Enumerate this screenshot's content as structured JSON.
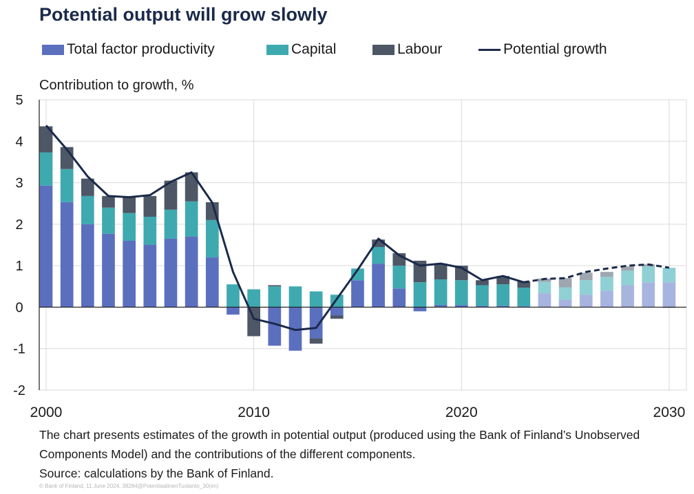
{
  "title": "Potential output will grow slowly",
  "ytitle": "Contribution to growth, %",
  "note": "The chart presents estimates of the growth in potential output (produced using the Bank of Finland’s Unobserved Components Model) and the contributions of the different components.",
  "source": "Source: calculations by the Bank of Finland.",
  "copyright": "© Bank of Finland, 11 June 2024, 38284@PotentiaalinenTuotanto_30(en)",
  "legend": {
    "tfp": "Total factor productivity",
    "capital": "Capital",
    "labour": "Labour",
    "potential": "Potential growth"
  },
  "colors": {
    "tfp": "#5b6fbf",
    "capital": "#3fa9b0",
    "labour": "#4d5766",
    "potential": "#1b2a4a",
    "tfp_forecast": "#a7b4e0",
    "capital_forecast": "#8fd0d4",
    "labour_forecast": "#9ea6b0"
  },
  "chart_data": {
    "type": "bar",
    "stacked": true,
    "ylim": [
      -2,
      5
    ],
    "yticks": [
      "-2",
      "-1",
      "0",
      "1",
      "2",
      "3",
      "4",
      "5"
    ],
    "xticks": [
      "2000",
      "2010",
      "2020",
      "2030"
    ],
    "grid": true,
    "legend_position": "top",
    "forecast_from": 2024,
    "x": [
      2000,
      2001,
      2002,
      2003,
      2004,
      2005,
      2006,
      2007,
      2008,
      2009,
      2010,
      2011,
      2012,
      2013,
      2014,
      2015,
      2016,
      2017,
      2018,
      2019,
      2020,
      2021,
      2022,
      2023,
      2024,
      2025,
      2026,
      2027,
      2028,
      2029,
      2030
    ],
    "series": [
      {
        "name": "Total factor productivity",
        "type": "bar",
        "values": [
          2.93,
          2.53,
          2.0,
          1.77,
          1.6,
          1.5,
          1.65,
          1.7,
          1.2,
          -0.18,
          0.0,
          -0.93,
          -1.05,
          -0.75,
          -0.2,
          0.65,
          1.05,
          0.45,
          -0.1,
          0.05,
          0.05,
          0.03,
          0.03,
          0.02,
          0.33,
          0.18,
          0.3,
          0.4,
          0.53,
          0.6,
          0.6
        ]
      },
      {
        "name": "Capital",
        "type": "bar",
        "values": [
          0.8,
          0.8,
          0.68,
          0.63,
          0.67,
          0.68,
          0.7,
          0.85,
          0.9,
          0.55,
          0.43,
          0.5,
          0.5,
          0.38,
          0.3,
          0.28,
          0.4,
          0.55,
          0.6,
          0.62,
          0.6,
          0.5,
          0.52,
          0.45,
          0.28,
          0.3,
          0.35,
          0.33,
          0.35,
          0.38,
          0.35
        ]
      },
      {
        "name": "Labour",
        "type": "bar",
        "values": [
          0.63,
          0.53,
          0.42,
          0.28,
          0.38,
          0.5,
          0.7,
          0.7,
          0.43,
          0.0,
          -0.7,
          0.03,
          0.0,
          -0.13,
          -0.08,
          0.0,
          0.18,
          0.3,
          0.52,
          0.38,
          0.35,
          0.12,
          0.2,
          0.15,
          0.08,
          0.22,
          0.18,
          0.12,
          0.1,
          0.05,
          -0.02
        ]
      },
      {
        "name": "Potential growth",
        "type": "line",
        "values": [
          4.38,
          3.8,
          3.15,
          2.68,
          2.65,
          2.7,
          3.02,
          3.25,
          2.52,
          0.85,
          -0.28,
          -0.4,
          -0.55,
          -0.5,
          0.2,
          0.9,
          1.65,
          1.25,
          1.0,
          1.05,
          0.95,
          0.65,
          0.75,
          0.6,
          0.68,
          0.7,
          0.85,
          0.93,
          1.0,
          1.03,
          0.95
        ]
      }
    ]
  }
}
